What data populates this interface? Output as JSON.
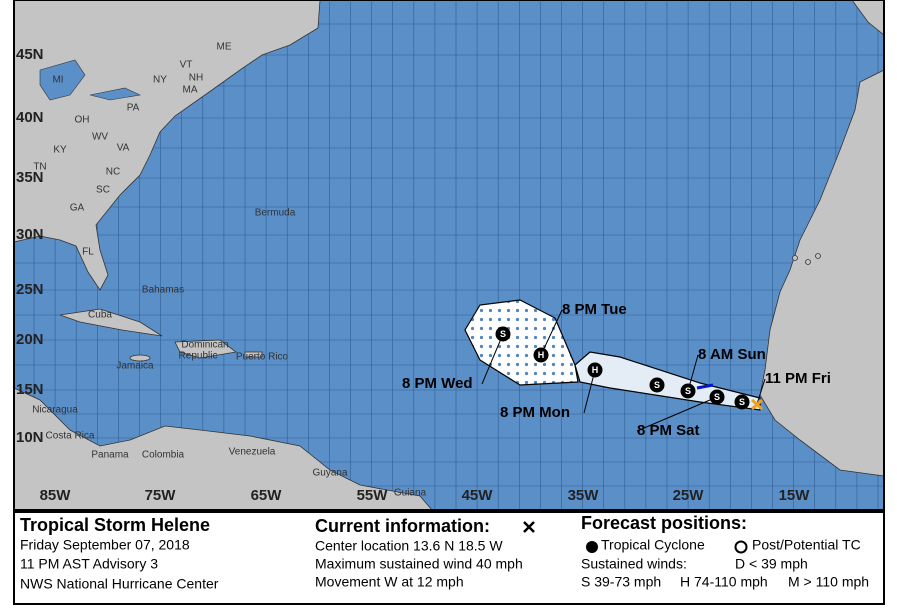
{
  "map": {
    "lat_labels": [
      "45N",
      "40N",
      "35N",
      "30N",
      "25N",
      "20N",
      "15N",
      "10N"
    ],
    "lon_labels": [
      "85W",
      "75W",
      "65W",
      "55W",
      "45W",
      "35W",
      "25W",
      "15W"
    ],
    "places": [
      "ME",
      "MI",
      "NY",
      "VT",
      "NH",
      "MA",
      "PA",
      "OH",
      "WV",
      "VA",
      "KY",
      "TN",
      "NC",
      "SC",
      "GA",
      "FL",
      "Bermuda",
      "Bahamas",
      "Cuba",
      "Jamaica",
      "Dominican",
      "Republic",
      "Puerto Rico",
      "Venezuela",
      "Colombia",
      "Panama",
      "Costa Rica",
      "Nicaragua",
      "Guyana",
      "Guiana"
    ],
    "forecast_symbols": [
      "S",
      "S",
      "S",
      "S",
      "H",
      "H",
      "S"
    ],
    "forecast_labels": [
      "11 PM Fri",
      "8 PM Sat",
      "8 AM Sun",
      "8 PM Mon",
      "8 PM Tue",
      "8 PM Wed"
    ]
  },
  "legend": {
    "storm": "Tropical Storm Helene",
    "date": "Friday September 07, 2018",
    "advisory": "11 PM AST Advisory 3",
    "office": "NWS National Hurricane Center",
    "current_title": "Current information:",
    "current_lines": [
      "Center location 13.6 N 18.5 W",
      "Maximum sustained wind 40 mph",
      "Movement W at 12 mph"
    ],
    "forecast_title": "Forecast positions:",
    "tropical_cyclone": "Tropical Cyclone",
    "post_potential": "Post/Potential TC",
    "sustained": "Sustained winds:",
    "depression": "D < 39 mph",
    "categories": [
      "S 39-73 mph",
      "H 74-110 mph",
      "M > 110 mph"
    ]
  }
}
